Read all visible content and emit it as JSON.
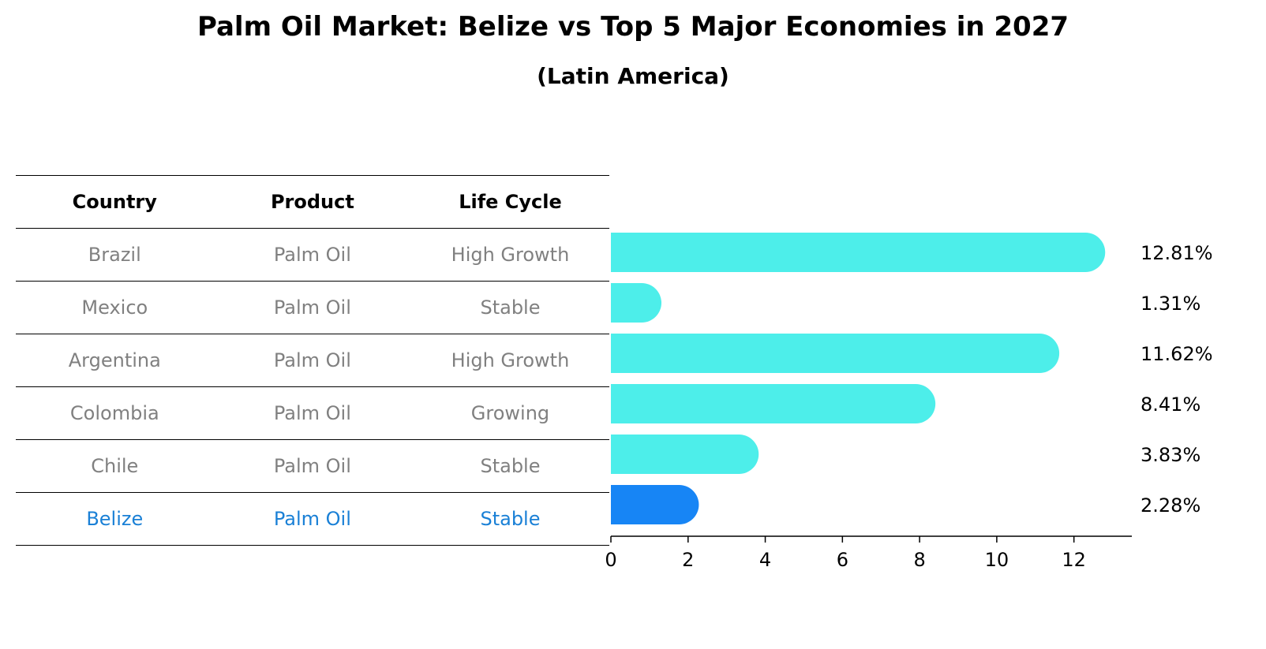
{
  "title": "Palm Oil Market: Belize vs Top 5 Major Economies in 2027",
  "subtitle": "(Latin America)",
  "table": {
    "headers": [
      "Country",
      "Product",
      "Life Cycle"
    ],
    "rows": [
      [
        "Brazil",
        "Palm Oil",
        "High Growth"
      ],
      [
        "Mexico",
        "Palm Oil",
        "Stable"
      ],
      [
        "Argentina",
        "Palm Oil",
        "High Growth"
      ],
      [
        "Colombia",
        "Palm Oil",
        "Growing"
      ],
      [
        "Chile",
        "Palm Oil",
        "Stable"
      ],
      [
        "Belize",
        "Palm Oil",
        "Stable"
      ]
    ],
    "highlight_row": "Belize"
  },
  "chart_data": {
    "type": "bar",
    "orientation": "horizontal",
    "title": "Palm Oil Market: Belize vs Top 5 Major Economies in 2027",
    "subtitle": "(Latin America)",
    "categories": [
      "Brazil",
      "Mexico",
      "Argentina",
      "Colombia",
      "Chile",
      "Belize"
    ],
    "values": [
      12.81,
      1.31,
      11.62,
      8.41,
      3.83,
      2.28
    ],
    "value_labels": [
      "12.81%",
      "1.31%",
      "11.62%",
      "8.41%",
      "3.83%",
      "2.28%"
    ],
    "xlim": [
      0,
      13.5
    ],
    "xticks": [
      0,
      2,
      4,
      6,
      8,
      10,
      12
    ],
    "grid": false,
    "colors": {
      "default": "#4deeea",
      "highlight": "#1785f5"
    },
    "highlight": "Belize"
  }
}
